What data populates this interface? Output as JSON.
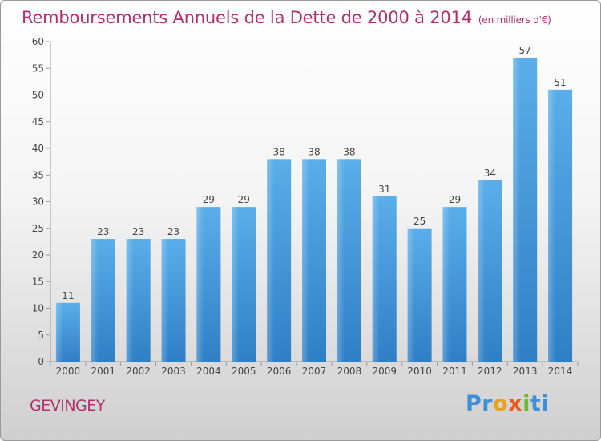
{
  "title": "Remboursements Annuels de la Dette de 2000 à 2014",
  "subtitle": "(en milliers d'€)",
  "place": "GEVINGEY",
  "logo": {
    "letters": [
      "Pr",
      "o",
      "x",
      "i",
      "ti"
    ],
    "colors": [
      "#3f8fd6",
      "#e8a21e",
      "#e85a1b",
      "#6bbb2c",
      "#3f8fd6"
    ]
  },
  "chart_data": {
    "type": "bar",
    "categories": [
      "2000",
      "2001",
      "2002",
      "2003",
      "2004",
      "2005",
      "2006",
      "2007",
      "2008",
      "2009",
      "2010",
      "2011",
      "2012",
      "2013",
      "2014"
    ],
    "values": [
      11,
      23,
      23,
      23,
      29,
      29,
      38,
      38,
      38,
      31,
      25,
      29,
      34,
      57,
      51
    ],
    "ylim": [
      0,
      60
    ],
    "yticks": [
      0,
      5,
      10,
      15,
      20,
      25,
      30,
      35,
      40,
      45,
      50,
      55,
      60
    ],
    "grid": false,
    "bar_color": "#4c9ee0",
    "title_color": "#b0306e"
  }
}
